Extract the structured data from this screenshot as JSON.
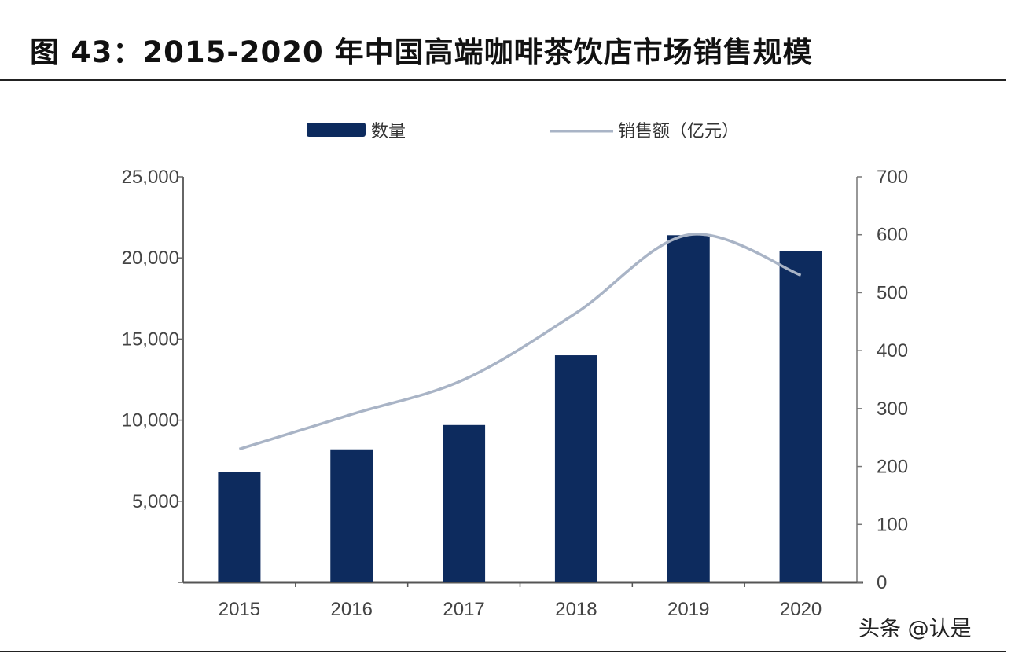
{
  "title": "图 43：2015-2020 年中国高端咖啡茶饮店市场销售规模",
  "watermark": "头条 @认是",
  "chart_data": {
    "type": "bar+line",
    "categories": [
      "2015",
      "2016",
      "2017",
      "2018",
      "2019",
      "2020"
    ],
    "series": [
      {
        "name": "数量",
        "type": "bar",
        "axis": "left",
        "values": [
          6800,
          8200,
          9700,
          14000,
          21400,
          20400
        ],
        "color": "#0d2b5e"
      },
      {
        "name": "销售额（亿元）",
        "type": "line",
        "axis": "right",
        "values": [
          230,
          290,
          350,
          465,
          600,
          530
        ],
        "color": "#a9b4c6"
      }
    ],
    "y_left": {
      "range": [
        0,
        25000
      ],
      "ticks": [
        "",
        "5,000",
        "10,000",
        "15,000",
        "20,000",
        "25,000"
      ]
    },
    "y_right": {
      "range": [
        0,
        700
      ],
      "ticks": [
        "0",
        "100",
        "200",
        "300",
        "400",
        "500",
        "600",
        "700"
      ]
    },
    "grid": false,
    "legend": "top"
  }
}
